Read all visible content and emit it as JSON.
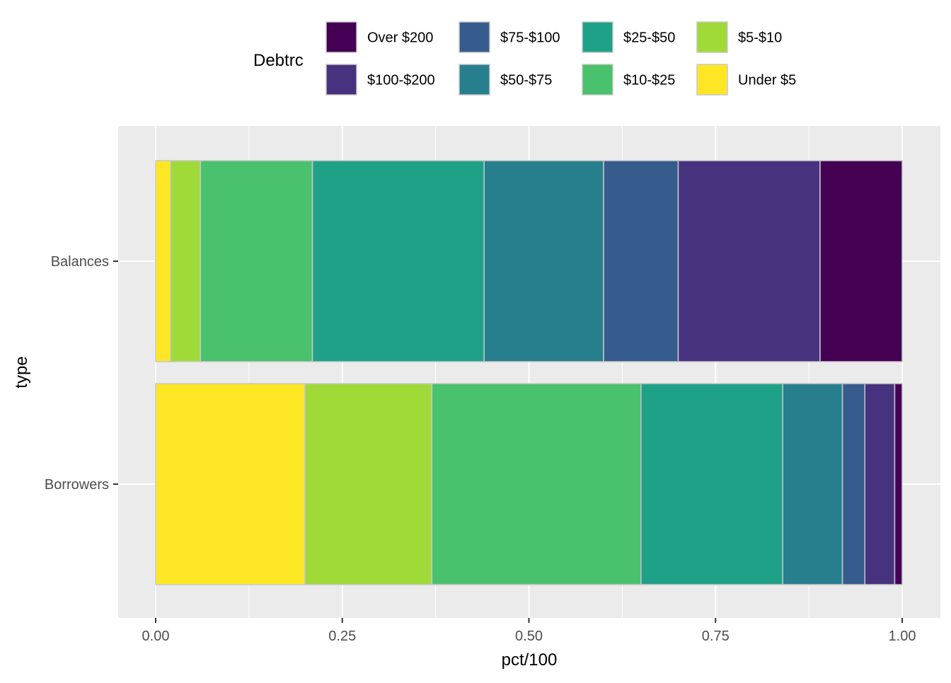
{
  "chart_data": {
    "type": "bar",
    "orientation": "horizontal",
    "stacked": true,
    "xlabel": "pct/100",
    "ylabel": "type",
    "xlim": [
      0,
      1
    ],
    "x_ticks": [
      "0.00",
      "0.25",
      "0.50",
      "0.75",
      "1.00"
    ],
    "categories": [
      "Balances",
      "Borrowers"
    ],
    "legend": {
      "title": "Debtrc",
      "position": "top",
      "order": [
        "Over $200",
        "$100-$200",
        "$75-$100",
        "$50-$75",
        "$25-$50",
        "$10-$25",
        "$5-$10",
        "Under $5"
      ]
    },
    "grid": true,
    "background": "#EBEBEB",
    "series": [
      {
        "name": "Under $5",
        "color": "#FDE725",
        "values": [
          0.02,
          0.2
        ]
      },
      {
        "name": "$5-$10",
        "color": "#A0DA39",
        "values": [
          0.04,
          0.17
        ]
      },
      {
        "name": "$10-$25",
        "color": "#4AC16D",
        "values": [
          0.15,
          0.28
        ]
      },
      {
        "name": "$25-$50",
        "color": "#1FA187",
        "values": [
          0.23,
          0.19
        ]
      },
      {
        "name": "$50-$75",
        "color": "#277F8E",
        "values": [
          0.16,
          0.08
        ]
      },
      {
        "name": "$75-$100",
        "color": "#365C8D",
        "values": [
          0.1,
          0.03
        ]
      },
      {
        "name": "$100-$200",
        "color": "#46327E",
        "values": [
          0.19,
          0.04
        ]
      },
      {
        "name": "Over $200",
        "color": "#440154",
        "values": [
          0.11,
          0.01
        ]
      }
    ]
  }
}
